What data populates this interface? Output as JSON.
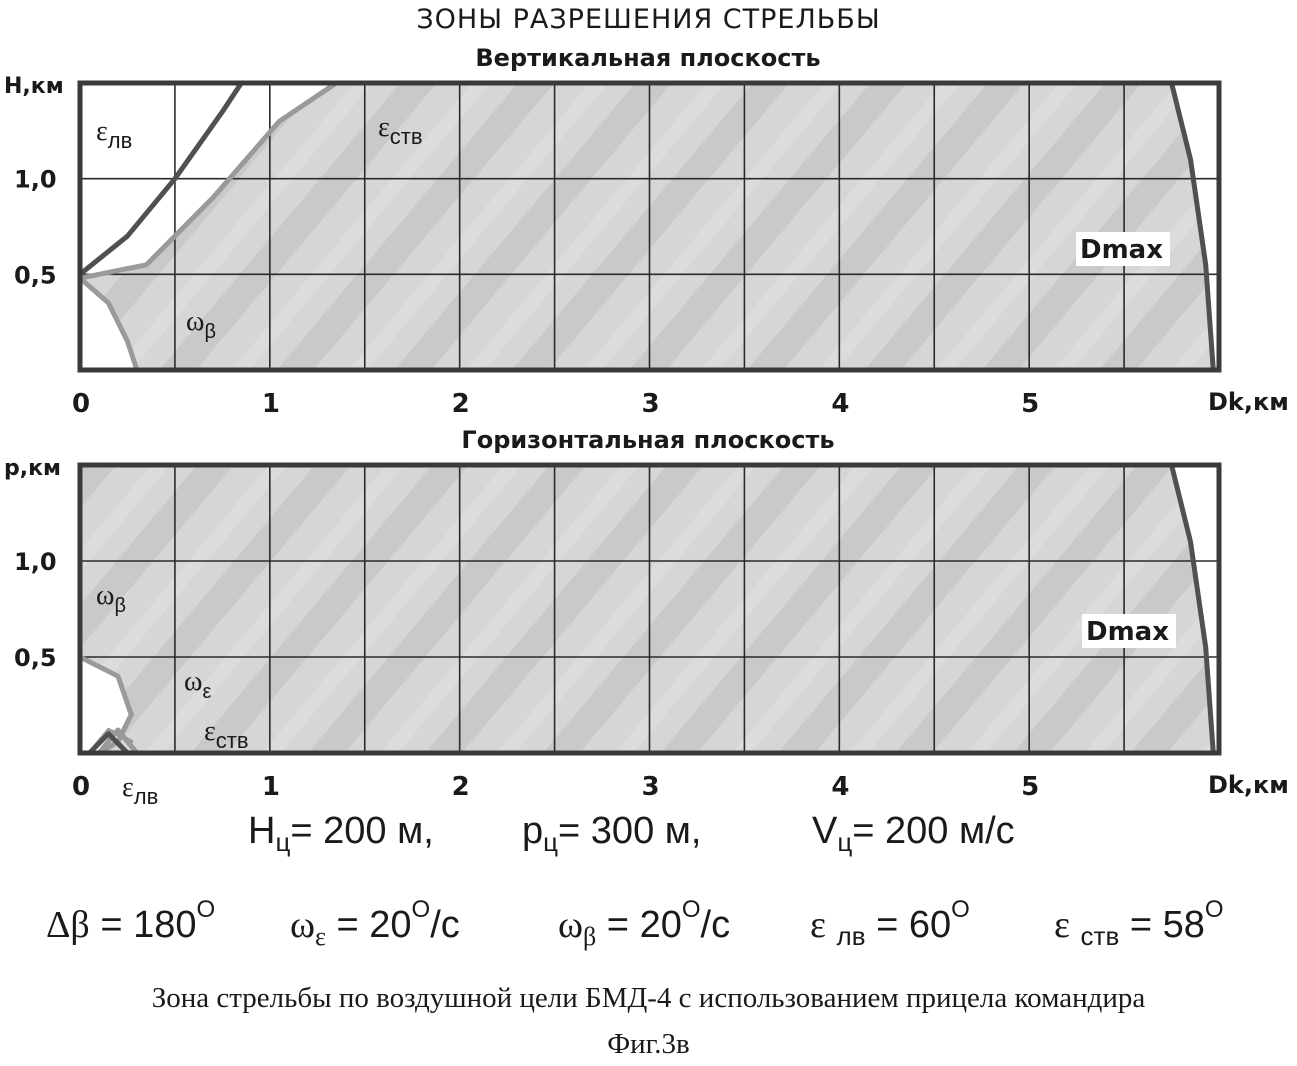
{
  "title": "ЗОНЫ РАЗРЕШЕНИЯ СТРЕЛЬБЫ",
  "colors": {
    "zone_fill": "#d4d4d4",
    "frame": "#3a3a3a",
    "curve_dark": "#505050",
    "curve_light": "#9a9a9a"
  },
  "chart_data": [
    {
      "type": "area",
      "title": "Вертикальная плоскость",
      "xlabel": "Dk,км",
      "ylabel": "H,км",
      "xlim": [
        0,
        6
      ],
      "ylim": [
        0,
        1.5
      ],
      "x_ticks": [
        "0",
        "1",
        "2",
        "3",
        "4",
        "5"
      ],
      "y_ticks": [
        "0,5",
        "1,0"
      ],
      "grid": true,
      "series": [
        {
          "name": "εлв",
          "x": [
            0.0,
            0.25,
            0.5,
            0.75,
            0.85
          ],
          "y": [
            0.5,
            0.7,
            1.0,
            1.35,
            1.5
          ]
        },
        {
          "name": "εств",
          "x": [
            0.0,
            0.35,
            0.7,
            1.05,
            1.35
          ],
          "y": [
            0.48,
            0.55,
            0.9,
            1.3,
            1.5
          ]
        },
        {
          "name": "ωβ",
          "x": [
            0.0,
            0.15,
            0.25,
            0.3
          ],
          "y": [
            0.48,
            0.35,
            0.15,
            0.0
          ]
        },
        {
          "name": "Dmax",
          "x": [
            5.75,
            5.85,
            5.93,
            5.97
          ],
          "y": [
            1.5,
            1.1,
            0.55,
            0.0
          ]
        }
      ],
      "annotations": [
        "εлв",
        "εств",
        "ωβ",
        "Dmax"
      ]
    },
    {
      "type": "area",
      "title": "Горизонтальная плоскость",
      "xlabel": "Dk,км",
      "ylabel": "p,км",
      "xlim": [
        0,
        6
      ],
      "ylim": [
        0,
        1.5
      ],
      "x_ticks": [
        "0",
        "1",
        "2",
        "3",
        "4",
        "5"
      ],
      "y_ticks": [
        "0,5",
        "1,0"
      ],
      "grid": true,
      "series": [
        {
          "name": "ωβ",
          "x": [
            0.0,
            0.2,
            0.27,
            0.2,
            0.1
          ],
          "y": [
            0.5,
            0.4,
            0.2,
            0.06,
            0.0
          ]
        },
        {
          "name": "ωε",
          "x": [
            0.05,
            0.15,
            0.27
          ],
          "y": [
            0.0,
            0.12,
            0.06
          ]
        },
        {
          "name": "εств",
          "x": [
            0.1,
            0.2,
            0.3
          ],
          "y": [
            0.0,
            0.12,
            0.0
          ]
        },
        {
          "name": "εлв",
          "x": [
            0.05,
            0.15,
            0.25
          ],
          "y": [
            0.0,
            0.1,
            0.0
          ]
        },
        {
          "name": "Dmax",
          "x": [
            5.75,
            5.85,
            5.93,
            5.97
          ],
          "y": [
            1.5,
            1.1,
            0.55,
            0.0
          ]
        }
      ],
      "annotations": [
        "ωβ",
        "ωε",
        "εств",
        "εлв",
        "Dmax"
      ]
    }
  ],
  "params": {
    "line1": {
      "h": "200 м,",
      "p": "300 м,",
      "v": "200 м/с"
    },
    "line2": {
      "db": "180",
      "we": "20",
      "wb": "20",
      "elv": "60",
      "estv": "58"
    }
  },
  "caption": "Зона стрельбы по воздушной цели БМД-4 с использованием прицела командира",
  "figure": "Фиг.3в"
}
